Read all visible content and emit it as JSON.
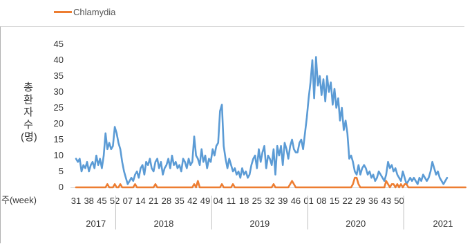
{
  "legend": {
    "label": "Chlamydia",
    "color": "#ED7D31"
  },
  "chart_data": {
    "type": "line",
    "ylabel": "총환자수(명)",
    "ylabel_glyphs": [
      "총",
      "환",
      "자",
      "수",
      "(명)"
    ],
    "xlabel": "주(week)",
    "ylim": [
      0,
      45
    ],
    "yticks": [
      0,
      5,
      10,
      15,
      20,
      25,
      30,
      35,
      40,
      45
    ],
    "grid": false,
    "legend_position": "top-left",
    "x_tick_labels": [
      "31",
      "38",
      "45",
      "52",
      "07",
      "14",
      "21",
      "28",
      "35",
      "42",
      "49",
      "04",
      "11",
      "18",
      "25",
      "32",
      "39",
      "46",
      "01",
      "08",
      "15",
      "22",
      "29",
      "36",
      "43",
      "50"
    ],
    "year_labels": [
      "2017",
      "2018",
      "2019",
      "2020",
      "2021"
    ],
    "x_start": "2017 week 31",
    "series": [
      {
        "name": "",
        "color": "#5B9BD5",
        "values": [
          9,
          8,
          9,
          5,
          7,
          6,
          8,
          5,
          7,
          8,
          6,
          10,
          7,
          9,
          6,
          10,
          17,
          12,
          14,
          12,
          13,
          19,
          17,
          14,
          12,
          8,
          5,
          3,
          1,
          2,
          3,
          2,
          4,
          5,
          3,
          6,
          7,
          4,
          8,
          7,
          9,
          6,
          5,
          8,
          9,
          6,
          8,
          4,
          6,
          7,
          9,
          6,
          10,
          7,
          8,
          6,
          7,
          5,
          9,
          8,
          6,
          9,
          7,
          8,
          16,
          10,
          9,
          7,
          12,
          8,
          10,
          6,
          9,
          8,
          12,
          10,
          13,
          14,
          24,
          26,
          13,
          9,
          6,
          9,
          7,
          5,
          6,
          4,
          5,
          3,
          6,
          4,
          5,
          3,
          4,
          7,
          9,
          10,
          6,
          12,
          8,
          11,
          13,
          6,
          10,
          9,
          7,
          12,
          4,
          13,
          10,
          13,
          7,
          14,
          12,
          9,
          13,
          15,
          12,
          11,
          11,
          14,
          15,
          12,
          17,
          22,
          28,
          33,
          40,
          28,
          41,
          32,
          35,
          29,
          34,
          27,
          35,
          30,
          33,
          26,
          31,
          25,
          28,
          21,
          25,
          18,
          21,
          17,
          9,
          10,
          8,
          5,
          4,
          7,
          4,
          6,
          7,
          6,
          4,
          5,
          3,
          4,
          2,
          3,
          5,
          4,
          3,
          2,
          4,
          8,
          6,
          7,
          5,
          6,
          4,
          3,
          2,
          5,
          3,
          1,
          2,
          3,
          2,
          3,
          2,
          1,
          3,
          2,
          4,
          3,
          2,
          3,
          5,
          8,
          6,
          4,
          5,
          3,
          2,
          1,
          2,
          3
        ]
      },
      {
        "name": "Chlamydia",
        "color": "#ED7D31",
        "values": [
          0,
          0,
          0,
          0,
          0,
          0,
          0,
          0,
          0,
          0,
          0,
          0,
          0,
          0,
          0,
          0,
          0,
          1,
          0,
          0,
          0,
          1,
          0,
          0,
          1,
          0,
          0,
          0,
          0,
          0,
          0,
          0,
          1,
          0,
          0,
          0,
          0,
          0,
          0,
          0,
          0,
          0,
          0,
          1,
          0,
          0,
          0,
          0,
          0,
          0,
          0,
          0,
          0,
          0,
          0,
          0,
          0,
          0,
          0,
          0,
          0,
          0,
          0,
          0,
          1,
          0,
          2,
          0,
          0,
          0,
          0,
          0,
          0,
          0,
          0,
          0,
          0,
          0,
          0,
          1,
          0,
          0,
          0,
          0,
          0,
          1,
          0,
          0,
          0,
          0,
          0,
          0,
          0,
          0,
          0,
          0,
          0,
          0,
          0,
          0,
          0,
          0,
          0,
          0,
          0,
          0,
          0,
          1,
          0,
          0,
          0,
          0,
          0,
          0,
          0,
          0,
          1,
          2,
          1,
          0,
          0,
          0,
          0,
          0,
          0,
          0,
          0,
          0,
          0,
          0,
          0,
          0,
          0,
          0,
          0,
          0,
          0,
          0,
          0,
          0,
          0,
          0,
          0,
          0,
          0,
          0,
          0,
          0,
          0,
          0,
          1,
          3,
          3,
          1,
          0,
          0,
          0,
          0,
          0,
          0,
          0,
          0,
          0,
          0,
          0,
          0,
          0,
          0,
          2,
          1,
          0,
          1,
          1,
          0,
          1,
          0,
          1,
          0,
          1,
          1,
          0,
          0,
          0,
          0,
          0,
          0,
          0,
          0,
          0,
          0,
          0,
          0,
          0,
          0,
          0,
          0,
          0,
          0,
          0,
          0,
          0,
          0,
          0,
          0,
          0,
          0,
          0,
          0,
          0,
          0,
          0,
          0
        ]
      }
    ]
  }
}
